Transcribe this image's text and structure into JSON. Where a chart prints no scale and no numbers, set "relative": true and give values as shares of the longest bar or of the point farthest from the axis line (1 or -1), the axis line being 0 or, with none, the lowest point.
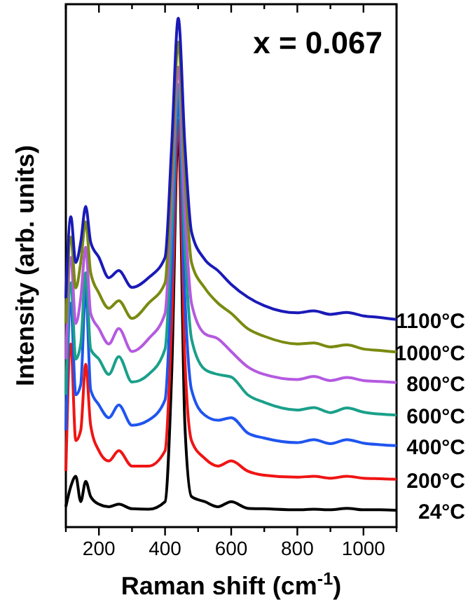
{
  "chart_data": {
    "type": "line",
    "relative": true,
    "xlabel": "Raman shift (cm$^{-1}$)",
    "ylabel": "Intensity (arb. units)",
    "annotations": [
      "x = 0.067"
    ],
    "xlim": [
      100,
      1100
    ],
    "xticks": [
      {
        "value": 100,
        "label": null
      },
      200,
      {
        "value": 300,
        "label": null
      },
      400,
      {
        "value": 500,
        "label": null
      },
      600,
      {
        "value": 700,
        "label": null
      },
      800,
      {
        "value": 900,
        "label": null
      },
      1000,
      {
        "value": 1100,
        "label": null
      }
    ],
    "tick_labels": "x",
    "legend": false,
    "grid": false,
    "marker": "none",
    "line_style": "solid",
    "x": [
      100,
      115,
      130,
      145,
      160,
      175,
      200,
      230,
      260,
      300,
      350,
      400,
      420,
      440,
      460,
      480,
      520,
      560,
      600,
      650,
      700,
      800,
      850,
      900,
      950,
      1000,
      1050,
      1100
    ],
    "series": [
      {
        "name": "24°C",
        "color": "#000000",
        "values": [
          0.04,
          0.08,
          0.1,
          0.05,
          0.09,
          0.06,
          0.045,
          0.04,
          0.045,
          0.036,
          0.035,
          0.05,
          0.3,
          0.78,
          0.2,
          0.06,
          0.05,
          0.04,
          0.05,
          0.037,
          0.036,
          0.034,
          0.035,
          0.034,
          0.037,
          0.034,
          0.034,
          0.033
        ]
      },
      {
        "name": "200°C",
        "color": "#f01414",
        "values": [
          0.11,
          0.36,
          0.17,
          0.19,
          0.32,
          0.2,
          0.15,
          0.13,
          0.15,
          0.12,
          0.12,
          0.15,
          0.4,
          0.8,
          0.33,
          0.17,
          0.135,
          0.12,
          0.13,
          0.11,
          0.102,
          0.098,
          0.1,
          0.096,
          0.1,
          0.096,
          0.095,
          0.094
        ]
      },
      {
        "name": "400°C",
        "color": "#1f55f0",
        "values": [
          0.19,
          0.44,
          0.26,
          0.28,
          0.47,
          0.27,
          0.24,
          0.215,
          0.24,
          0.2,
          0.21,
          0.25,
          0.5,
          0.84,
          0.45,
          0.27,
          0.22,
          0.21,
          0.215,
          0.185,
          0.175,
          0.166,
          0.172,
          0.164,
          0.172,
          0.165,
          0.162,
          0.16
        ]
      },
      {
        "name": "600°C",
        "color": "#1aa08a",
        "values": [
          0.26,
          0.48,
          0.33,
          0.36,
          0.5,
          0.35,
          0.33,
          0.3,
          0.335,
          0.285,
          0.3,
          0.35,
          0.58,
          0.87,
          0.55,
          0.37,
          0.31,
          0.3,
          0.295,
          0.26,
          0.245,
          0.23,
          0.235,
          0.225,
          0.234,
          0.226,
          0.222,
          0.22
        ]
      },
      {
        "name": "800°C",
        "color": "#b45ae0",
        "values": [
          0.33,
          0.53,
          0.4,
          0.45,
          0.55,
          0.42,
          0.39,
          0.36,
          0.39,
          0.345,
          0.37,
          0.42,
          0.65,
          0.904,
          0.62,
          0.44,
          0.38,
          0.37,
          0.345,
          0.315,
          0.3,
          0.29,
          0.296,
          0.288,
          0.294,
          0.288,
          0.286,
          0.284
        ]
      },
      {
        "name": "1000°C",
        "color": "#7a8a10",
        "values": [
          0.4,
          0.57,
          0.47,
          0.52,
          0.6,
          0.5,
          0.46,
          0.43,
          0.445,
          0.41,
          0.44,
          0.48,
          0.7,
          0.953,
          0.7,
          0.52,
          0.47,
          0.44,
          0.42,
          0.39,
          0.375,
          0.36,
          0.362,
          0.354,
          0.358,
          0.35,
          0.347,
          0.344
        ]
      },
      {
        "name": "1100°C",
        "color": "#1a1ab8",
        "values": [
          0.45,
          0.61,
          0.52,
          0.56,
          0.63,
          0.56,
          0.53,
          0.49,
          0.504,
          0.471,
          0.49,
          0.53,
          0.75,
          1.0,
          0.75,
          0.58,
          0.526,
          0.504,
          0.477,
          0.452,
          0.435,
          0.421,
          0.425,
          0.418,
          0.422,
          0.415,
          0.412,
          0.408
        ]
      }
    ]
  }
}
